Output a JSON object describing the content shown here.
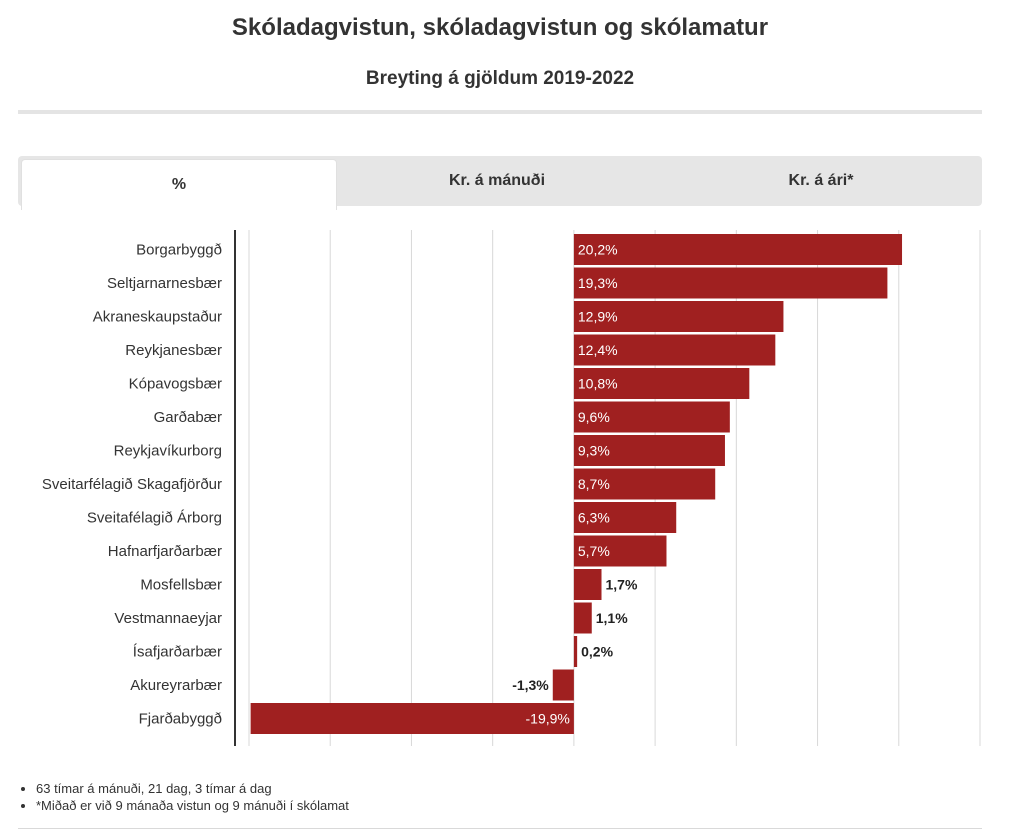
{
  "title": "Skóladagvistun, skóladagvistun og skólamatur",
  "subtitle": "Breyting á gjöldum 2019-2022",
  "tabs": [
    {
      "label": "%",
      "active": true
    },
    {
      "label": "Kr. á mánuði",
      "active": false
    },
    {
      "label": "Kr. á ári*",
      "active": false
    }
  ],
  "chart_data": {
    "type": "bar",
    "orientation": "horizontal",
    "categories": [
      "Borgarbyggð",
      "Seltjarnarnesbær",
      "Akraneskaupstaður",
      "Reykjanesbær",
      "Kópavogsbær",
      "Garðabær",
      "Reykjavíkurborg",
      "Sveitarfélagið Skagafjörður",
      "Sveitafélagið Árborg",
      "Hafnarfjarðarbær",
      "Mosfellsbær",
      "Vestmannaeyjar",
      "Ísafjarðarbær",
      "Akureyrarbær",
      "Fjarðabyggð"
    ],
    "values": [
      20.2,
      19.3,
      12.9,
      12.4,
      10.8,
      9.6,
      9.3,
      8.7,
      6.3,
      5.7,
      1.7,
      1.1,
      0.2,
      -1.3,
      -19.9
    ],
    "value_labels": [
      "20,2%",
      "19,3%",
      "12,9%",
      "12,4%",
      "10,8%",
      "9,6%",
      "9,3%",
      "8,7%",
      "6,3%",
      "5,7%",
      "1,7%",
      "1,1%",
      "0,2%",
      "-1,3%",
      "-19,9%"
    ],
    "xlim": [
      -20,
      25
    ],
    "grid": true,
    "bar_color": "#a02020"
  },
  "notes": [
    "63 tímar á mánuði, 21 dag, 3 tímar á dag",
    "*Miðað er við 9 mánaða vistun og 9 mánuði í skólamat"
  ]
}
